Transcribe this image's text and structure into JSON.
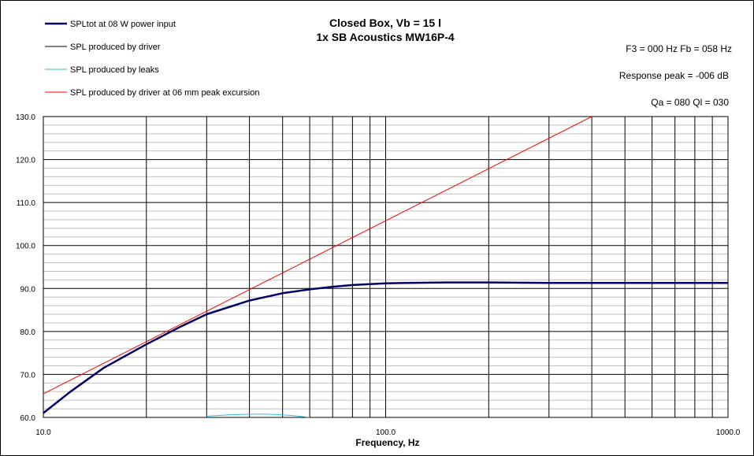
{
  "chart_data": {
    "type": "line",
    "title": "Closed Box, Vb = 15 l",
    "subtitle": "1x SB Acoustics MW16P-4",
    "xlabel": "Frequency, Hz",
    "ylabel": "",
    "xscale": "log",
    "xlim": [
      10,
      1000
    ],
    "ylim": [
      60,
      130
    ],
    "grid": true,
    "legend_position": "top-left",
    "x_tick_labels": [
      "10.0",
      "100.0",
      "1000.0"
    ],
    "y_tick_labels": [
      "60.0",
      "70.0",
      "80.0",
      "90.0",
      "100.0",
      "110.0",
      "120.0",
      "130.0"
    ],
    "annotations": {
      "f3_fb": "F3 = 000  Hz  Fb = 058  Hz",
      "response_peak": "Response peak = -006  dB",
      "qa_ql": "Qa = 080   Ql = 030"
    },
    "series": [
      {
        "name": "SPLtot at 08 W power input",
        "color": "#000066",
        "x": [
          10,
          12,
          15,
          20,
          25,
          30,
          40,
          50,
          60,
          70,
          80,
          100,
          150,
          200,
          300,
          500,
          1000
        ],
        "y": [
          61.0,
          66.0,
          71.5,
          77.0,
          81.0,
          84.0,
          87.2,
          88.9,
          89.8,
          90.4,
          90.8,
          91.2,
          91.4,
          91.4,
          91.3,
          91.3,
          91.3
        ]
      },
      {
        "name": "SPL produced by driver",
        "color": "#000000",
        "x": [
          10,
          12,
          15,
          20,
          25,
          30,
          40,
          50,
          60,
          70,
          80,
          100,
          150,
          200,
          300,
          500,
          1000
        ],
        "y": [
          61.0,
          66.0,
          71.5,
          77.0,
          81.0,
          84.0,
          87.2,
          88.9,
          89.8,
          90.4,
          90.8,
          91.2,
          91.4,
          91.4,
          91.3,
          91.3,
          91.3
        ]
      },
      {
        "name": "SPL produced by leaks",
        "color": "#33bbdd",
        "x": [
          30,
          35,
          40,
          45,
          50,
          55,
          60
        ],
        "y": [
          60.3,
          60.6,
          60.75,
          60.75,
          60.6,
          60.35,
          60.0
        ]
      },
      {
        "name": "SPL produced by driver at 06 mm peak excursion",
        "color": "#ff0000",
        "x": [
          10,
          400
        ],
        "y": [
          65.5,
          130.0
        ]
      }
    ]
  }
}
